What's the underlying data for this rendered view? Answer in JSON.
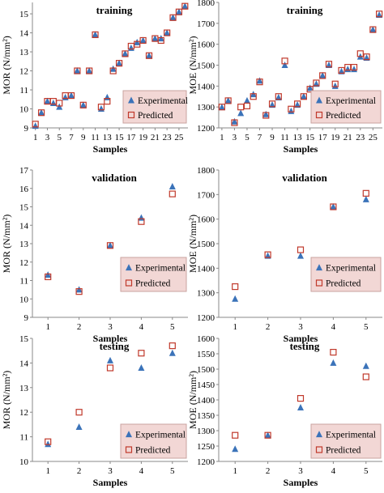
{
  "chart_data": [
    {
      "type": "scatter",
      "title": "training",
      "xlabel": "Samples",
      "ylabel": "MOR (N/mm²)",
      "xlim": [
        0.5,
        26.5
      ],
      "ylim": [
        9,
        15.6
      ],
      "xticks": [
        1,
        3,
        5,
        7,
        9,
        11,
        13,
        15,
        17,
        19,
        21,
        23,
        25
      ],
      "yticks": [
        9,
        10,
        11,
        12,
        13,
        14,
        15
      ],
      "grid": false,
      "legend": "bottom-right",
      "x": [
        1,
        2,
        3,
        4,
        5,
        6,
        7,
        8,
        9,
        10,
        11,
        12,
        13,
        14,
        15,
        16,
        17,
        18,
        19,
        20,
        21,
        22,
        23,
        24,
        25,
        26
      ],
      "series": [
        {
          "name": "Experimental",
          "marker": "triangle",
          "values": [
            9.1,
            9.8,
            10.4,
            10.3,
            10.1,
            10.6,
            10.7,
            12.0,
            10.2,
            12.0,
            13.9,
            10.0,
            10.6,
            12.1,
            12.4,
            12.9,
            13.2,
            13.5,
            13.6,
            12.8,
            13.7,
            13.7,
            14.0,
            14.8,
            15.1,
            15.4
          ]
        },
        {
          "name": "Predicted",
          "marker": "square",
          "values": [
            9.2,
            9.8,
            10.4,
            10.4,
            10.3,
            10.7,
            10.7,
            12.0,
            10.2,
            12.0,
            13.9,
            10.1,
            10.4,
            12.0,
            12.4,
            12.9,
            13.3,
            13.4,
            13.6,
            12.8,
            13.7,
            13.6,
            14.0,
            14.8,
            15.1,
            15.4
          ]
        }
      ]
    },
    {
      "type": "scatter",
      "title": "training",
      "xlabel": "Samples",
      "ylabel": "MOE (N/mm²)",
      "xlim": [
        0.5,
        26.5
      ],
      "ylim": [
        1200,
        1800
      ],
      "xticks": [
        1,
        3,
        5,
        7,
        9,
        11,
        13,
        15,
        17,
        19,
        21,
        23,
        25
      ],
      "yticks": [
        1200,
        1300,
        1400,
        1500,
        1600,
        1700,
        1800
      ],
      "grid": false,
      "legend": "bottom-right",
      "x": [
        1,
        2,
        3,
        4,
        5,
        6,
        7,
        8,
        9,
        10,
        11,
        12,
        13,
        14,
        15,
        16,
        17,
        18,
        19,
        20,
        21,
        22,
        23,
        24,
        25,
        26
      ],
      "series": [
        {
          "name": "Experimental",
          "marker": "triangle",
          "values": [
            1298,
            1330,
            1230,
            1270,
            1330,
            1360,
            1425,
            1265,
            1310,
            1345,
            1500,
            1280,
            1310,
            1350,
            1390,
            1410,
            1450,
            1500,
            1400,
            1470,
            1480,
            1480,
            1540,
            1535,
            1670,
            1740
          ]
        },
        {
          "name": "Predicted",
          "marker": "square",
          "values": [
            1300,
            1330,
            1225,
            1300,
            1305,
            1350,
            1420,
            1260,
            1315,
            1350,
            1520,
            1290,
            1315,
            1350,
            1385,
            1415,
            1450,
            1505,
            1410,
            1475,
            1490,
            1490,
            1555,
            1540,
            1670,
            1745
          ]
        }
      ]
    },
    {
      "type": "scatter",
      "title": "validation",
      "xlabel": "Samples",
      "ylabel": "MOR (N/mm²)",
      "xlim": [
        0.5,
        5.5
      ],
      "ylim": [
        9,
        17
      ],
      "xticks": [
        1,
        2,
        3,
        4,
        5
      ],
      "yticks": [
        9,
        10,
        11,
        12,
        13,
        14,
        15,
        16,
        17
      ],
      "grid": false,
      "legend": "bottom-right",
      "x": [
        1,
        2,
        3,
        4,
        5
      ],
      "series": [
        {
          "name": "Experimental",
          "marker": "triangle",
          "values": [
            11.3,
            10.5,
            12.9,
            14.4,
            16.1
          ]
        },
        {
          "name": "Predicted",
          "marker": "square",
          "values": [
            11.2,
            10.4,
            12.9,
            14.2,
            15.7
          ]
        }
      ]
    },
    {
      "type": "scatter",
      "title": "validation",
      "xlabel": "Samples",
      "ylabel": "MOE (N/mm²)",
      "xlim": [
        0.5,
        5.5
      ],
      "ylim": [
        1200,
        1800
      ],
      "xticks": [
        1,
        2,
        3,
        4,
        5
      ],
      "yticks": [
        1200,
        1300,
        1400,
        1500,
        1600,
        1700,
        1800
      ],
      "grid": false,
      "legend": "bottom-right",
      "x": [
        1,
        2,
        3,
        4,
        5
      ],
      "series": [
        {
          "name": "Experimental",
          "marker": "triangle",
          "values": [
            1275,
            1450,
            1450,
            1650,
            1680
          ]
        },
        {
          "name": "Predicted",
          "marker": "square",
          "values": [
            1325,
            1455,
            1475,
            1650,
            1705
          ]
        }
      ]
    },
    {
      "type": "scatter",
      "title": "testing",
      "xlabel": "Samples",
      "ylabel": "MOR (N/mm²)",
      "xlim": [
        0.5,
        5.5
      ],
      "ylim": [
        10,
        15
      ],
      "xticks": [
        1,
        2,
        3,
        4,
        5
      ],
      "yticks": [
        10,
        11,
        12,
        13,
        14,
        15
      ],
      "grid": false,
      "legend": "bottom-right",
      "x": [
        1,
        2,
        3,
        4,
        5
      ],
      "series": [
        {
          "name": "Experimental",
          "marker": "triangle",
          "values": [
            10.7,
            11.4,
            14.1,
            13.8,
            14.4
          ]
        },
        {
          "name": "Predicted",
          "marker": "square",
          "values": [
            10.8,
            12.0,
            13.8,
            14.4,
            14.7
          ]
        }
      ]
    },
    {
      "type": "scatter",
      "title": "testing",
      "xlabel": "Samples",
      "ylabel": "MOE (N/mm²)",
      "xlim": [
        0.5,
        5.5
      ],
      "ylim": [
        1200,
        1600
      ],
      "xticks": [
        1,
        2,
        3,
        4,
        5
      ],
      "yticks": [
        1200,
        1250,
        1300,
        1350,
        1400,
        1450,
        1500,
        1550,
        1600
      ],
      "grid": false,
      "legend": "bottom-right",
      "x": [
        1,
        2,
        3,
        4,
        5
      ],
      "series": [
        {
          "name": "Experimental",
          "marker": "triangle",
          "values": [
            1240,
            1285,
            1375,
            1520,
            1510
          ]
        },
        {
          "name": "Predicted",
          "marker": "square",
          "values": [
            1285,
            1285,
            1405,
            1555,
            1475
          ]
        }
      ]
    }
  ],
  "colors": {
    "experimental": "#3b73b9",
    "predicted": "#c0392b",
    "legend_fill": "#f2d7d5",
    "legend_border": "#c9a3a0",
    "axis": "#888888"
  },
  "markers": {
    "experimental": "triangle",
    "predicted": "square"
  }
}
